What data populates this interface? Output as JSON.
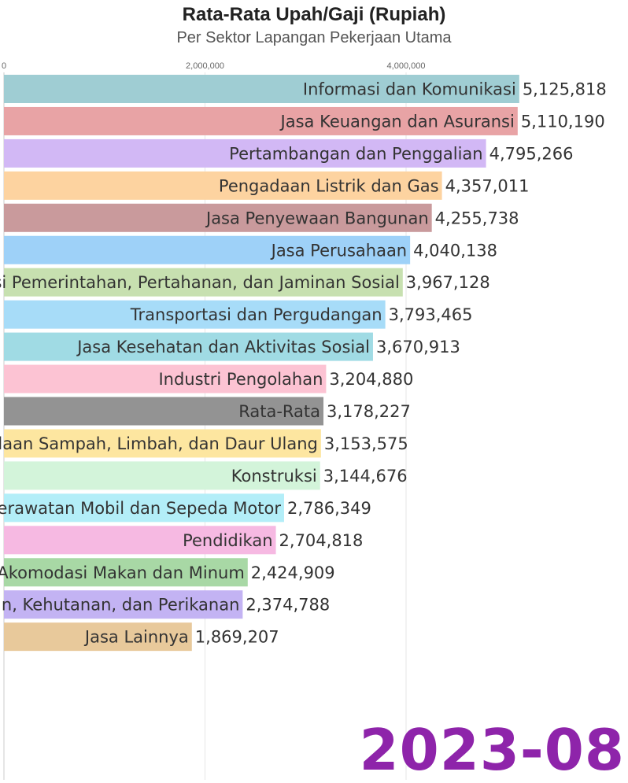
{
  "chart_data": {
    "type": "bar",
    "orientation": "horizontal",
    "title": "Rata-Rata Upah/Gaji (Rupiah)",
    "subtitle": "Per Sektor Lapangan Pekerjaan Utama",
    "period": "2023-08",
    "xlim": [
      0,
      6200000
    ],
    "x_ticks": [
      0,
      2000000,
      4000000
    ],
    "x_tick_labels": [
      "0",
      "2,000,000",
      "4,000,000"
    ],
    "grid": true,
    "categories": [
      "Informasi dan Komunikasi",
      "Jasa Keuangan dan Asuransi",
      "Pertambangan dan Penggalian",
      "Pengadaan Listrik dan Gas",
      "Jasa Penyewaan Bangunan",
      "Jasa Perusahaan",
      "si Pemerintahan, Pertahanan, dan Jaminan Sosial",
      "Transportasi dan Pergudangan",
      "Jasa Kesehatan dan Aktivitas Sosial",
      "Industri Pengolahan",
      "Rata-Rata",
      "olaan Sampah, Limbah, dan Daur Ulang",
      "Konstruksi",
      "Perawatan Mobil dan Sepeda Motor",
      "Pendidikan",
      "Akomodasi Makan dan Minum",
      "an, Kehutanan, dan Perikanan",
      "Jasa Lainnya"
    ],
    "values": [
      5125818,
      5110190,
      4795266,
      4357011,
      4255738,
      4040138,
      3967128,
      3793465,
      3670913,
      3204880,
      3178227,
      3153575,
      3144676,
      2786349,
      2704818,
      2424909,
      2374788,
      1869207
    ],
    "value_labels": [
      "5,125,818",
      "5,110,190",
      "4,795,266",
      "4,357,011",
      "4,255,738",
      "4,040,138",
      "3,967,128",
      "3,793,465",
      "3,670,913",
      "3,204,880",
      "3,178,227",
      "3,153,575",
      "3,144,676",
      "2,786,349",
      "2,704,818",
      "2,424,909",
      "2,374,788",
      "1,869,207"
    ],
    "colors": [
      "#9fcdd3",
      "#e8a3a5",
      "#d2b8f5",
      "#fdd3a0",
      "#c99a9c",
      "#9ed1f8",
      "#c7e0b0",
      "#a7dcf8",
      "#a0dbe4",
      "#fcc3d3",
      "#939393",
      "#fde6a0",
      "#d3f4da",
      "#b3eef8",
      "#f6b9e2",
      "#a8d8a5",
      "#c3b3f3",
      "#e8c99b"
    ]
  }
}
